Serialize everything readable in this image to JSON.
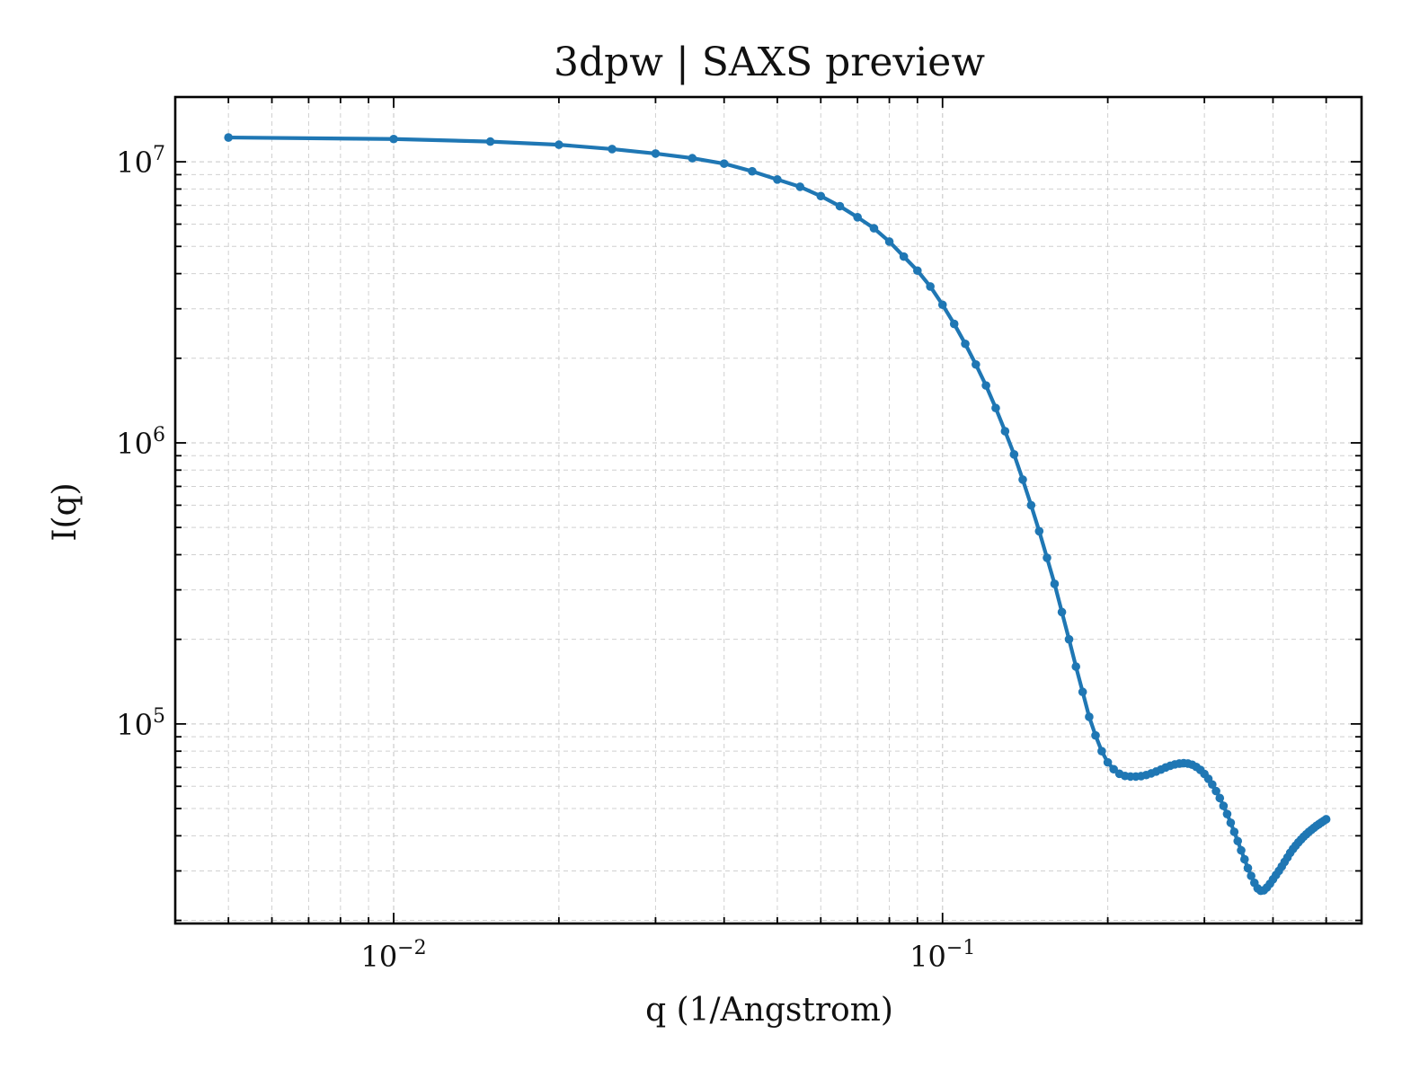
{
  "chart_data": {
    "type": "line",
    "title": "3dpw | SAXS preview",
    "xlabel": "q (1/Angstrom)",
    "ylabel": "I(q)",
    "x_scale": "log",
    "y_scale": "log",
    "xlim": [
      0.004,
      0.58
    ],
    "ylim": [
      19500,
      17000000
    ],
    "grid": true,
    "legend": "none",
    "x_ticks": [
      {
        "base": "10",
        "exp": "−2",
        "value": 0.01
      },
      {
        "base": "10",
        "exp": "−1",
        "value": 0.1
      }
    ],
    "y_ticks": [
      {
        "base": "10",
        "exp": "5",
        "value": 100000
      },
      {
        "base": "10",
        "exp": "6",
        "value": 1000000
      },
      {
        "base": "10",
        "exp": "7",
        "value": 10000000
      }
    ],
    "series": [
      {
        "color": "#1f77b4",
        "x": [
          0.005,
          0.01,
          0.015,
          0.02,
          0.025,
          0.03,
          0.035,
          0.04,
          0.045,
          0.05,
          0.055,
          0.06,
          0.065,
          0.07,
          0.075,
          0.08,
          0.085,
          0.09,
          0.095,
          0.1,
          0.105,
          0.11,
          0.115,
          0.12,
          0.125,
          0.13,
          0.135,
          0.14,
          0.145,
          0.15,
          0.155,
          0.16,
          0.165,
          0.17,
          0.175,
          0.18,
          0.185,
          0.19,
          0.195,
          0.2,
          0.205,
          0.21,
          0.215,
          0.22,
          0.225,
          0.23,
          0.235,
          0.24,
          0.245,
          0.25,
          0.255,
          0.26,
          0.265,
          0.27,
          0.275,
          0.28,
          0.285,
          0.29,
          0.295,
          0.3,
          0.305,
          0.31,
          0.315,
          0.32,
          0.325,
          0.33,
          0.335,
          0.34,
          0.345,
          0.35,
          0.355,
          0.36,
          0.365,
          0.37,
          0.375,
          0.38,
          0.385,
          0.39,
          0.395,
          0.4,
          0.405,
          0.41,
          0.415,
          0.42,
          0.425,
          0.43,
          0.435,
          0.44,
          0.445,
          0.45,
          0.455,
          0.46,
          0.465,
          0.47,
          0.475,
          0.48,
          0.485,
          0.49,
          0.495,
          0.5
        ],
        "y": [
          12200000,
          12050000,
          11800000,
          11500000,
          11100000,
          10700000,
          10300000,
          9850000,
          9250000,
          8650000,
          8150000,
          7550000,
          6950000,
          6350000,
          5800000,
          5200000,
          4600000,
          4100000,
          3600000,
          3100000,
          2650000,
          2250000,
          1900000,
          1600000,
          1330000,
          1100000,
          910000,
          740000,
          600000,
          485000,
          390000,
          315000,
          250000,
          200000,
          160000,
          130000,
          106000,
          91000,
          80000,
          73000,
          69000,
          66500,
          65300,
          65000,
          65000,
          65200,
          65800,
          66700,
          67700,
          68800,
          70000,
          71000,
          71800,
          72300,
          72500,
          72300,
          71600,
          70300,
          68600,
          66400,
          63800,
          60900,
          57700,
          54500,
          51100,
          47800,
          44500,
          41300,
          38300,
          35500,
          33000,
          30700,
          28800,
          27200,
          26000,
          25500,
          25600,
          26200,
          27000,
          28000,
          29000,
          30000,
          31100,
          32300,
          33500,
          34800,
          35900,
          36900,
          37900,
          38800,
          39700,
          40500,
          41300,
          42000,
          42700,
          43400,
          44000,
          44600,
          45200,
          45800
        ]
      }
    ]
  }
}
